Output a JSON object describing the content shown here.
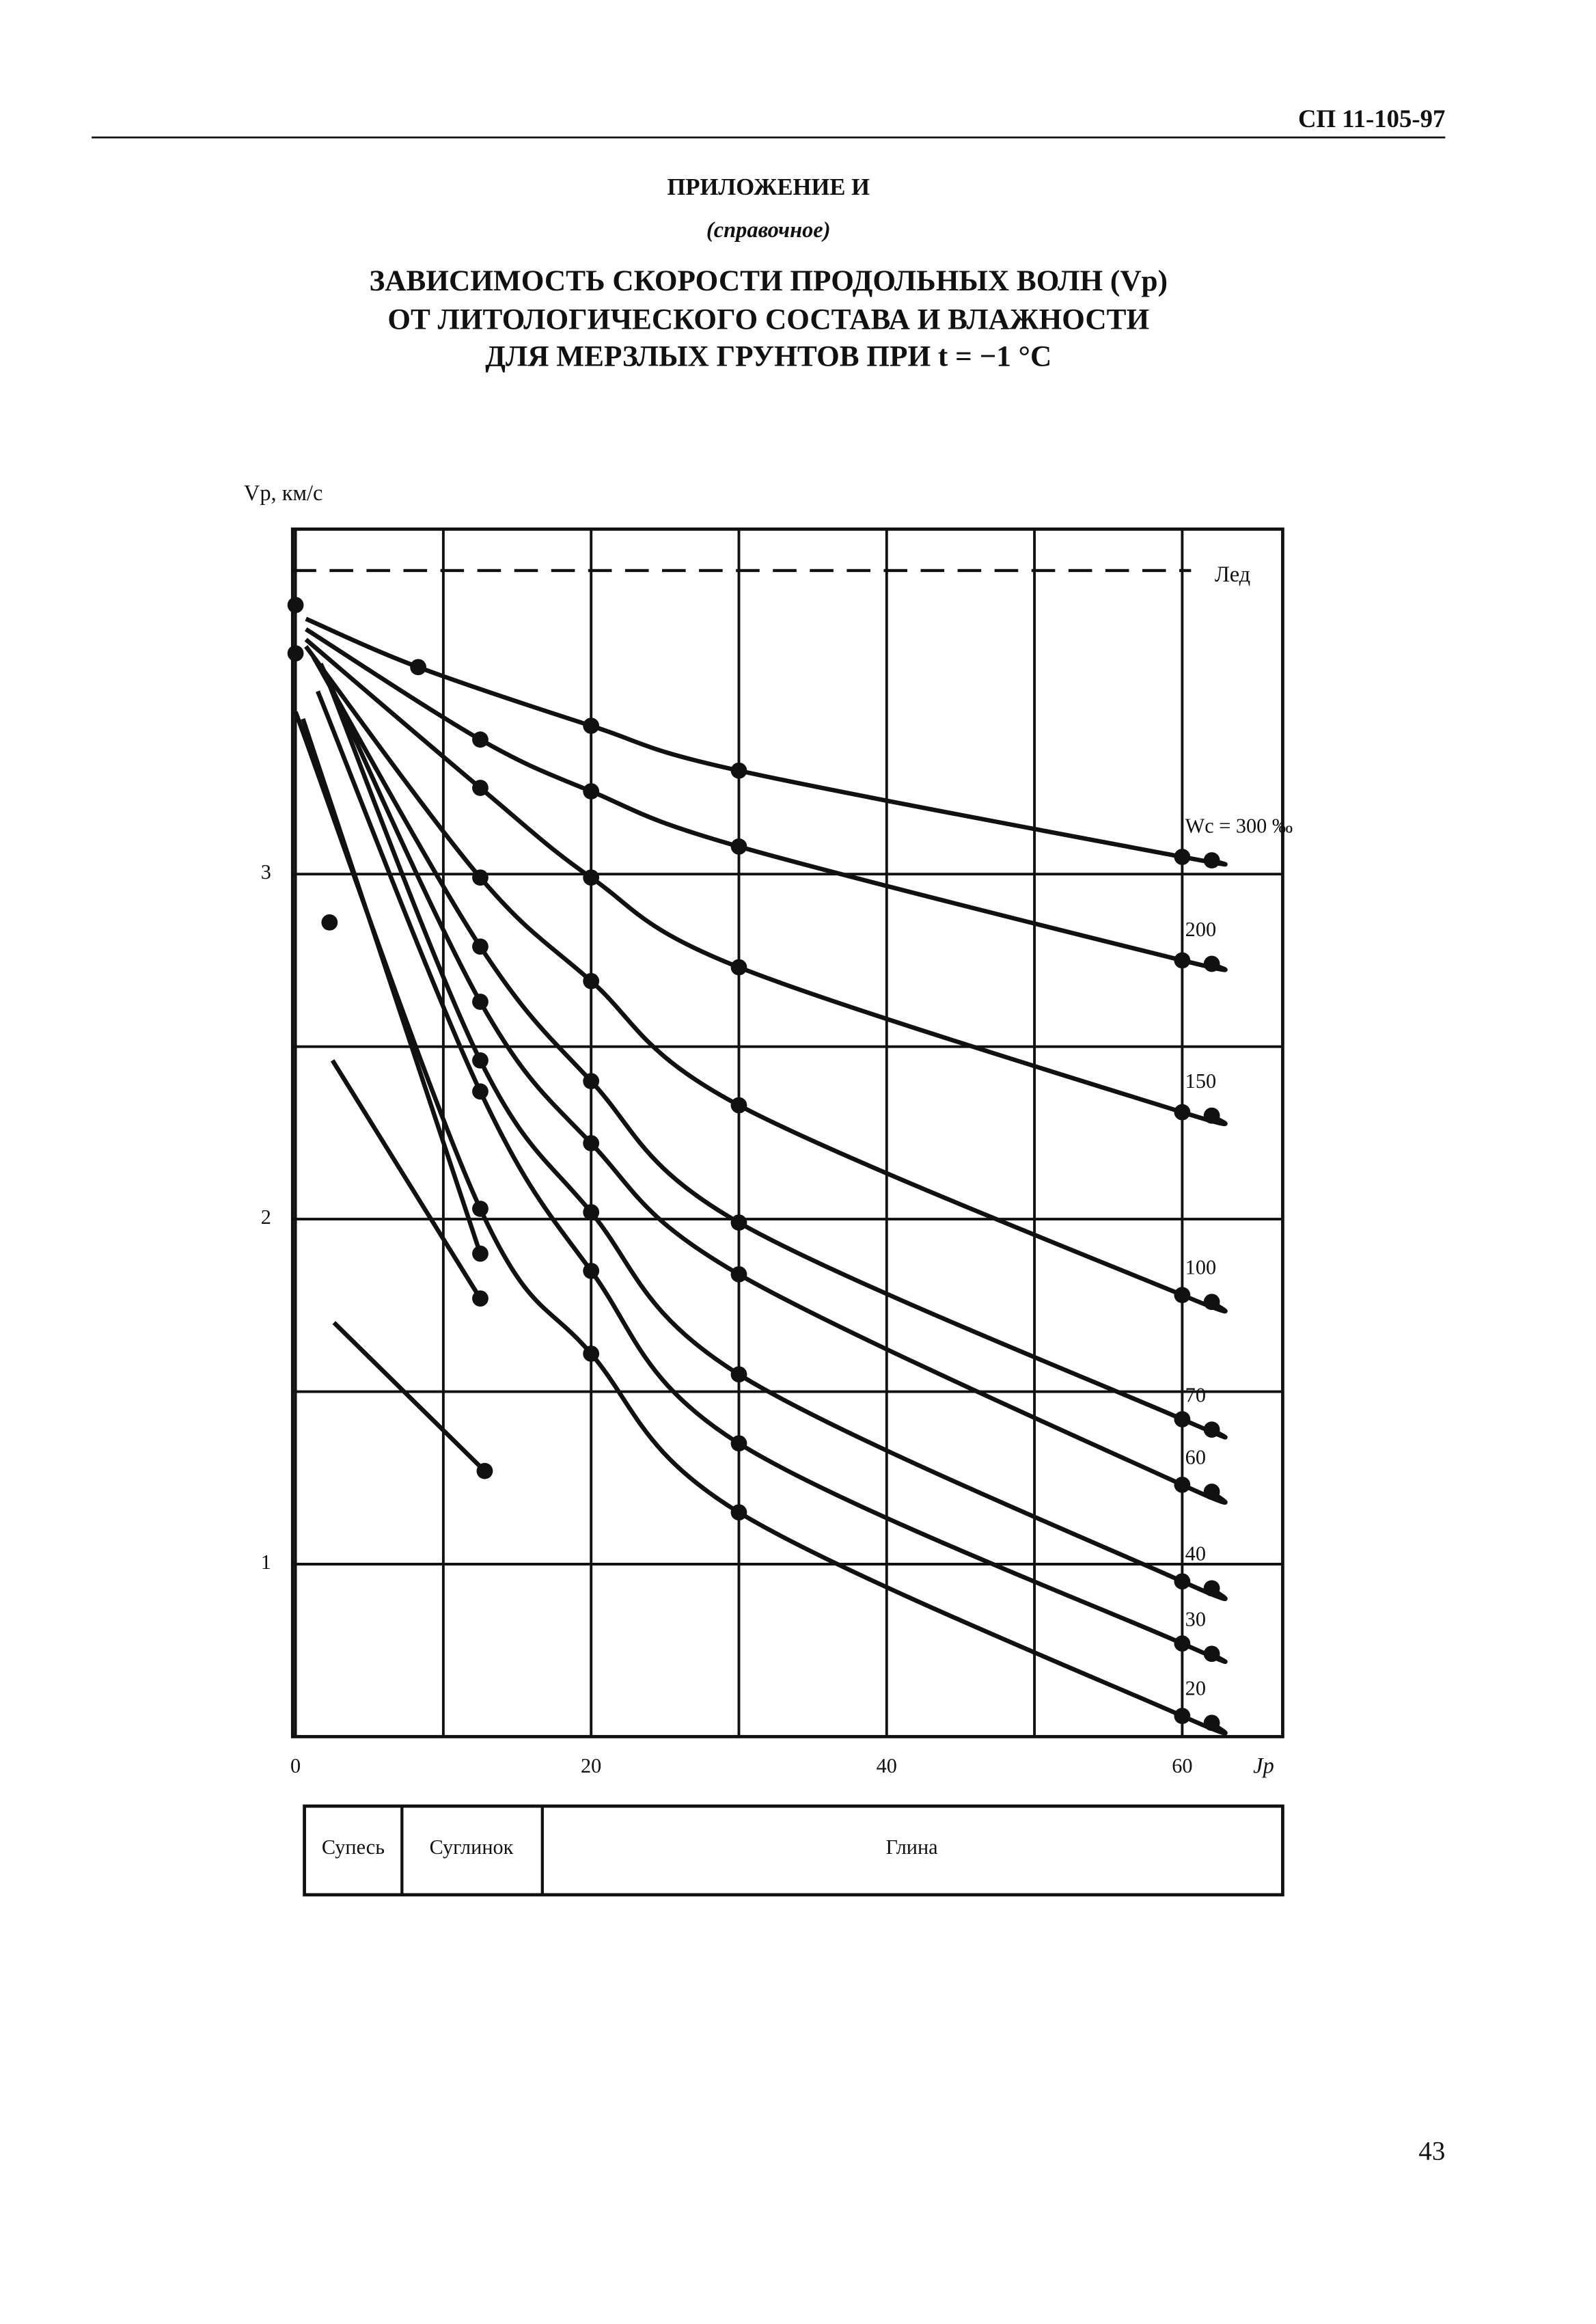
{
  "header": {
    "code": "СП 11-105-97"
  },
  "appendix": {
    "title": "ПРИЛОЖЕНИЕ И",
    "subtitle": "(справочное)",
    "heading": [
      "ЗАВИСИМОСТЬ СКОРОСТИ ПРОДОЛЬНЫХ ВОЛН (Vp)",
      "ОТ ЛИТОЛОГИЧЕСКОГО СОСТАВА И ВЛАЖНОСТИ",
      "ДЛЯ МЕРЗЛЫХ ГРУНТОВ ПРИ t = −1 °С"
    ]
  },
  "chart_data": {
    "type": "line",
    "y_label": "Vp, км/с",
    "x_label": "Jp",
    "xlim": [
      -0.2,
      66.8
    ],
    "ylim": [
      0.5,
      4.0
    ],
    "xticks": [
      0,
      20,
      40,
      60
    ],
    "yticks": [
      1,
      2,
      3
    ],
    "xminor": [
      10,
      30,
      50
    ],
    "yminor": [
      1.5,
      2.5
    ],
    "grid": true,
    "color": "#111111",
    "ice": {
      "name": "Лед",
      "value": 3.88
    },
    "series": [
      {
        "name": "Wc = 300 ‰",
        "x": [
          0.7,
          8.3,
          20,
          30,
          60,
          62
        ],
        "values": [
          3.74,
          3.6,
          3.43,
          3.3,
          3.05,
          3.04
        ]
      },
      {
        "name": "200",
        "x": [
          0.7,
          12.5,
          20,
          30,
          60,
          62
        ],
        "values": [
          3.71,
          3.39,
          3.24,
          3.08,
          2.75,
          2.74
        ]
      },
      {
        "name": "150",
        "x": [
          0.7,
          12.5,
          20,
          30,
          60,
          62
        ],
        "values": [
          3.68,
          3.25,
          2.99,
          2.73,
          2.31,
          2.3
        ]
      },
      {
        "name": "100",
        "x": [
          0.7,
          12.5,
          20,
          30,
          60,
          62
        ],
        "values": [
          3.66,
          2.99,
          2.69,
          2.33,
          1.78,
          1.76
        ]
      },
      {
        "name": "70",
        "x": [
          1.2,
          12.5,
          20,
          30,
          60,
          62
        ],
        "values": [
          3.63,
          2.79,
          2.4,
          1.99,
          1.42,
          1.39
        ]
      },
      {
        "name": "60",
        "x": [
          1.7,
          12.5,
          20,
          30,
          60,
          62
        ],
        "values": [
          3.61,
          2.63,
          2.22,
          1.84,
          1.23,
          1.21
        ]
      },
      {
        "name": "40",
        "x": [
          2,
          12.5,
          20,
          30,
          60,
          62
        ],
        "values": [
          3.58,
          2.46,
          2.02,
          1.55,
          0.95,
          0.93
        ]
      },
      {
        "name": "30",
        "x": [
          1.5,
          12.5,
          20,
          30,
          60,
          62
        ],
        "values": [
          3.53,
          2.37,
          1.85,
          1.35,
          0.77,
          0.74
        ]
      },
      {
        "name": "20",
        "x": [
          0,
          12.5,
          20,
          30,
          60,
          62
        ],
        "values": [
          3.47,
          2.03,
          1.61,
          1.15,
          0.56,
          0.54
        ]
      },
      {
        "x": [
          0.5,
          12.5
        ],
        "values": [
          3.45,
          1.9
        ]
      },
      {
        "x": [
          2.5,
          12.5
        ],
        "values": [
          2.46,
          1.77
        ]
      },
      {
        "x": [
          2.6,
          12.8
        ],
        "values": [
          1.7,
          1.27
        ]
      },
      {
        "x": [
          2.3,
          0,
          0
        ],
        "values": [
          2.86,
          3.78,
          3.64
        ],
        "line": false
      }
    ]
  },
  "soil_table": {
    "cells": [
      "Супесь",
      "Суглинок",
      "Глина"
    ]
  },
  "page_number": "43"
}
